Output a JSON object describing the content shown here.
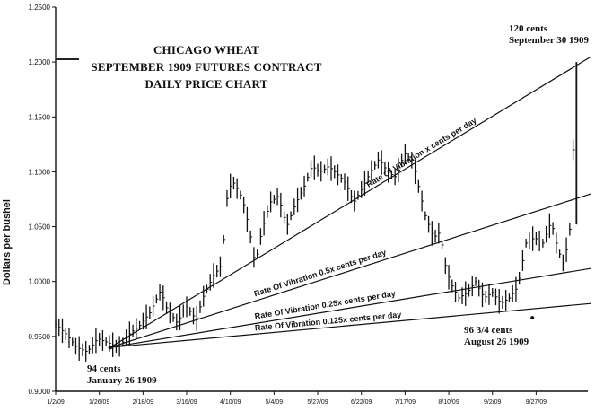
{
  "chart_data": {
    "type": "bar",
    "style": "daily OHLC price bars with trendlines",
    "title_lines": [
      "CHICAGO WHEAT",
      "SEPTEMBER 1909 FUTURES CONTRACT",
      "DAILY PRICE CHART"
    ],
    "xlabel": "",
    "ylabel": "Dollars per bushel",
    "ylim": [
      0.9,
      1.25
    ],
    "y_ticks": [
      "0.9000",
      "0.9500",
      "1.0000",
      "1.0500",
      "1.1000",
      "1.1500",
      "1.2000",
      "1.2500"
    ],
    "x_ticks": [
      "1/2/09",
      "1/26/09",
      "2/18/09",
      "3/16/09",
      "4/10/09",
      "5/4/09",
      "5/27/09",
      "6/22/09",
      "7/17/09",
      "8/10/09",
      "9/2/09",
      "9/27/09"
    ],
    "grid": false,
    "price_series": {
      "name": "",
      "points": [
        [
          0.0,
          0.961
        ],
        [
          0.5,
          0.952
        ],
        [
          1.0,
          0.94
        ],
        [
          1.5,
          0.936
        ],
        [
          2.0,
          0.948
        ],
        [
          2.4,
          0.945
        ],
        [
          3.0,
          0.94
        ],
        [
          3.5,
          0.952
        ],
        [
          4.0,
          0.96
        ],
        [
          4.5,
          0.972
        ],
        [
          5.0,
          0.992
        ],
        [
          5.3,
          0.975
        ],
        [
          5.8,
          0.962
        ],
        [
          6.2,
          0.978
        ],
        [
          6.7,
          0.965
        ],
        [
          7.0,
          0.985
        ],
        [
          7.5,
          1.005
        ],
        [
          7.9,
          1.015
        ],
        [
          8.2,
          1.085
        ],
        [
          8.5,
          1.09
        ],
        [
          8.9,
          1.075
        ],
        [
          9.2,
          1.05
        ],
        [
          9.5,
          1.015
        ],
        [
          9.8,
          1.045
        ],
        [
          10.2,
          1.072
        ],
        [
          10.6,
          1.078
        ],
        [
          11.0,
          1.05
        ],
        [
          11.4,
          1.07
        ],
        [
          11.8,
          1.085
        ],
        [
          12.2,
          1.105
        ],
        [
          12.6,
          1.1
        ],
        [
          13.0,
          1.105
        ],
        [
          13.4,
          1.098
        ],
        [
          13.8,
          1.09
        ],
        [
          14.2,
          1.072
        ],
        [
          14.6,
          1.085
        ],
        [
          15.0,
          1.1
        ],
        [
          15.4,
          1.112
        ],
        [
          15.8,
          1.1
        ],
        [
          16.2,
          1.095
        ],
        [
          16.6,
          1.117
        ],
        [
          17.0,
          1.11
        ],
        [
          17.3,
          1.085
        ],
        [
          17.6,
          1.06
        ],
        [
          18.0,
          1.04
        ],
        [
          18.3,
          1.045
        ],
        [
          18.6,
          1.01
        ],
        [
          18.9,
          0.995
        ],
        [
          19.2,
          0.985
        ],
        [
          19.6,
          0.99
        ],
        [
          20.0,
          1.0
        ],
        [
          20.4,
          0.985
        ],
        [
          20.8,
          0.99
        ],
        [
          21.2,
          0.98
        ],
        [
          21.6,
          0.985
        ],
        [
          22.0,
          0.995
        ],
        [
          22.4,
          1.035
        ],
        [
          22.8,
          1.04
        ],
        [
          23.2,
          1.035
        ],
        [
          23.6,
          1.055
        ],
        [
          23.9,
          1.03
        ],
        [
          24.2,
          1.015
        ],
        [
          24.5,
          1.05
        ],
        [
          24.8,
          1.2
        ]
      ]
    },
    "trendlines": [
      {
        "label": "Rate Of Vibration x cents per day",
        "from": [
          2.6,
          0.94
        ],
        "to": [
          25.5,
          1.205
        ]
      },
      {
        "label": "Rate Of Vibration 0.5x cents per day",
        "from": [
          2.6,
          0.94
        ],
        "to": [
          25.5,
          1.08
        ]
      },
      {
        "label": "Rate Of Vibration 0.25x cents per day",
        "from": [
          2.6,
          0.94
        ],
        "to": [
          25.5,
          1.012
        ]
      },
      {
        "label": "Rate Of Vibration 0.125x cents per day",
        "from": [
          2.6,
          0.94
        ],
        "to": [
          25.5,
          0.98
        ]
      }
    ],
    "annotations": [
      {
        "line1": "120 cents",
        "line2": "September 30 1909"
      },
      {
        "line1": "94 cents",
        "line2": "January 26 1909"
      },
      {
        "line1": "96 3/4 cents",
        "line2": "August 26 1909"
      }
    ]
  }
}
